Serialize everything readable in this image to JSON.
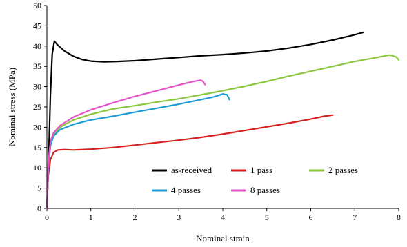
{
  "chart_data": {
    "type": "line",
    "title": "",
    "xlabel": "Nominal strain",
    "ylabel": "Nominal stress (MPa)",
    "xlim": [
      0,
      8
    ],
    "ylim": [
      0,
      50
    ],
    "xticks": [
      0,
      1,
      2,
      3,
      4,
      5,
      6,
      7,
      8
    ],
    "yticks": [
      0,
      5,
      10,
      15,
      20,
      25,
      30,
      35,
      40,
      45,
      50
    ],
    "grid": false,
    "legend_position": "lower-right inside plot",
    "series": [
      {
        "name": "as-received",
        "color": "#000000",
        "points": [
          [
            0,
            0
          ],
          [
            0.04,
            12
          ],
          [
            0.08,
            28
          ],
          [
            0.12,
            38
          ],
          [
            0.17,
            41.2
          ],
          [
            0.25,
            40.2
          ],
          [
            0.4,
            38.8
          ],
          [
            0.6,
            37.5
          ],
          [
            0.8,
            36.7
          ],
          [
            1.0,
            36.3
          ],
          [
            1.3,
            36.1
          ],
          [
            1.6,
            36.2
          ],
          [
            2.0,
            36.4
          ],
          [
            2.5,
            36.8
          ],
          [
            3.0,
            37.2
          ],
          [
            3.5,
            37.6
          ],
          [
            4.0,
            37.9
          ],
          [
            4.5,
            38.3
          ],
          [
            5.0,
            38.8
          ],
          [
            5.5,
            39.5
          ],
          [
            6.0,
            40.4
          ],
          [
            6.5,
            41.5
          ],
          [
            7.0,
            42.8
          ],
          [
            7.2,
            43.4
          ]
        ]
      },
      {
        "name": "1 pass",
        "color": "#d62020",
        "points": [
          [
            0,
            0
          ],
          [
            0.03,
            8
          ],
          [
            0.08,
            12
          ],
          [
            0.15,
            13.8
          ],
          [
            0.25,
            14.4
          ],
          [
            0.4,
            14.5
          ],
          [
            0.6,
            14.4
          ],
          [
            1.0,
            14.6
          ],
          [
            1.5,
            15.0
          ],
          [
            2.0,
            15.6
          ],
          [
            2.5,
            16.2
          ],
          [
            3.0,
            16.8
          ],
          [
            3.5,
            17.5
          ],
          [
            4.0,
            18.3
          ],
          [
            4.5,
            19.2
          ],
          [
            5.0,
            20.1
          ],
          [
            5.5,
            21.0
          ],
          [
            6.0,
            22.0
          ],
          [
            6.3,
            22.7
          ],
          [
            6.5,
            23.0
          ]
        ]
      },
      {
        "name": "2 passes",
        "color": "#8cc63f",
        "points": [
          [
            0,
            0
          ],
          [
            0.03,
            10
          ],
          [
            0.08,
            15.5
          ],
          [
            0.15,
            18.2
          ],
          [
            0.3,
            20.0
          ],
          [
            0.6,
            21.8
          ],
          [
            1.0,
            23.2
          ],
          [
            1.5,
            24.5
          ],
          [
            2.0,
            25.3
          ],
          [
            2.5,
            26.2
          ],
          [
            3.0,
            27.0
          ],
          [
            3.5,
            28.0
          ],
          [
            4.0,
            29.0
          ],
          [
            4.5,
            30.1
          ],
          [
            5.0,
            31.3
          ],
          [
            5.5,
            32.6
          ],
          [
            6.0,
            33.8
          ],
          [
            6.5,
            35.0
          ],
          [
            7.0,
            36.2
          ],
          [
            7.5,
            37.2
          ],
          [
            7.8,
            37.8
          ],
          [
            7.95,
            37.3
          ],
          [
            8.0,
            36.6
          ]
        ]
      },
      {
        "name": "4 passes",
        "color": "#1e9bd7",
        "points": [
          [
            0,
            0
          ],
          [
            0.03,
            10
          ],
          [
            0.08,
            15.5
          ],
          [
            0.15,
            17.8
          ],
          [
            0.3,
            19.4
          ],
          [
            0.6,
            20.7
          ],
          [
            1.0,
            21.8
          ],
          [
            1.5,
            22.7
          ],
          [
            2.0,
            23.7
          ],
          [
            2.5,
            24.7
          ],
          [
            3.0,
            25.7
          ],
          [
            3.5,
            26.8
          ],
          [
            3.8,
            27.5
          ],
          [
            4.0,
            28.2
          ],
          [
            4.1,
            28.0
          ],
          [
            4.15,
            26.8
          ]
        ]
      },
      {
        "name": "8 passes",
        "color": "#e455c8",
        "points": [
          [
            0,
            0
          ],
          [
            0.03,
            11
          ],
          [
            0.08,
            16.5
          ],
          [
            0.15,
            18.6
          ],
          [
            0.3,
            20.4
          ],
          [
            0.6,
            22.5
          ],
          [
            1.0,
            24.3
          ],
          [
            1.5,
            26.0
          ],
          [
            2.0,
            27.6
          ],
          [
            2.5,
            29.0
          ],
          [
            3.0,
            30.4
          ],
          [
            3.3,
            31.2
          ],
          [
            3.5,
            31.6
          ],
          [
            3.55,
            31.3
          ],
          [
            3.6,
            30.5
          ]
        ]
      }
    ]
  }
}
